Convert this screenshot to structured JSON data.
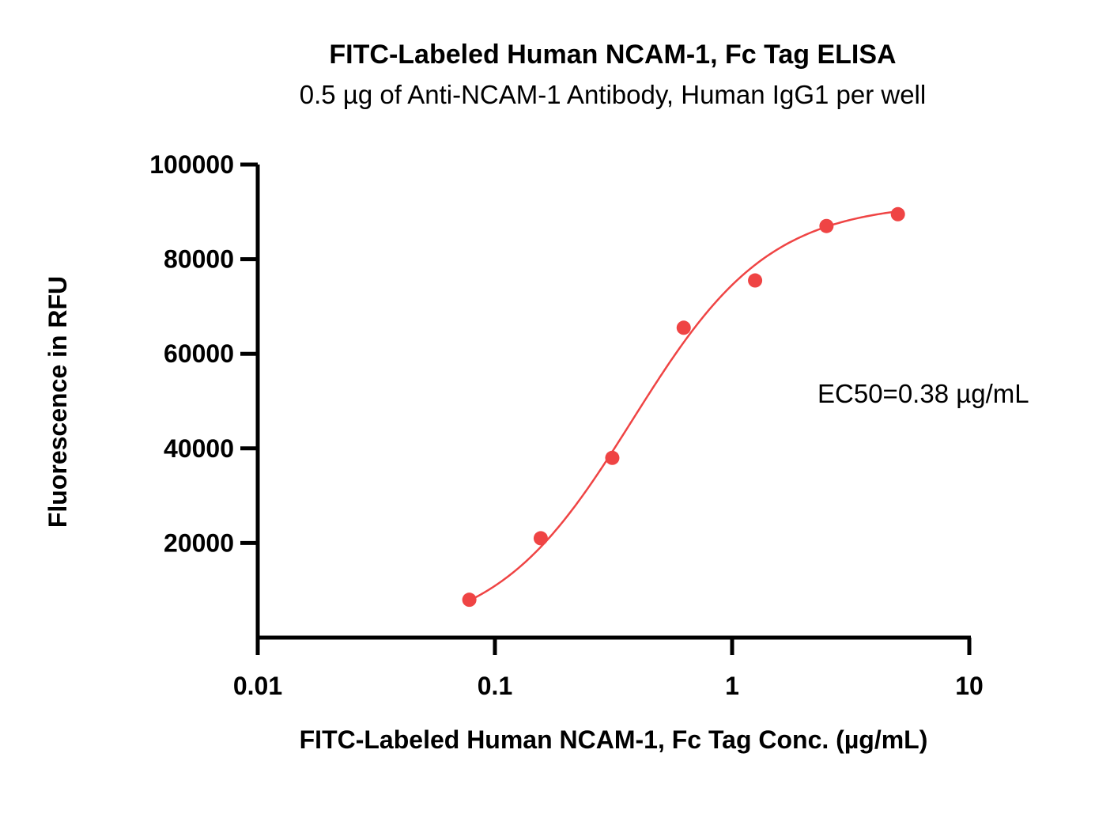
{
  "chart_data": {
    "type": "scatter",
    "title": "FITC-Labeled Human NCAM-1, Fc Tag ELISA",
    "subtitle": "0.5 µg of Anti-NCAM-1 Antibody, Human IgG1 per well",
    "xlabel": "FITC-Labeled Human NCAM-1, Fc Tag Conc. (µg/mL)",
    "ylabel": "Fluorescence in RFU",
    "xscale": "log",
    "xlim": [
      0.01,
      10
    ],
    "ylim": [
      0,
      100000
    ],
    "x_ticks": [
      0.01,
      0.1,
      1,
      10
    ],
    "x_tick_labels": [
      "0.01",
      "0.1",
      "1",
      "10"
    ],
    "y_ticks": [
      20000,
      40000,
      60000,
      80000,
      100000
    ],
    "y_tick_labels": [
      "20000",
      "40000",
      "60000",
      "80000",
      "100000"
    ],
    "grid": false,
    "series": [
      {
        "color": "#ef4444",
        "x": [
          0.078,
          0.156,
          0.3125,
          0.625,
          1.25,
          2.5,
          5
        ],
        "y": [
          8000,
          21000,
          38000,
          65500,
          75500,
          87000,
          89500
        ],
        "fit": {
          "model": "4PL",
          "bottom": 0,
          "top": 92000,
          "ec50": 0.38,
          "hill": 1.5
        }
      }
    ],
    "annotations": [
      {
        "text": "EC50=0.38  µg/mL"
      }
    ]
  }
}
